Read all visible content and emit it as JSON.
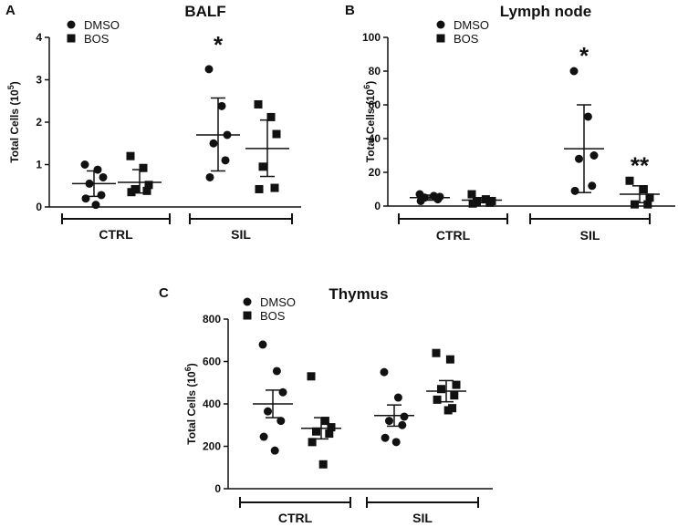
{
  "chart_data": [
    {
      "id": "A",
      "panel_letter": "A",
      "type": "scatter",
      "title": "BALF",
      "ylabel": "Total Cells",
      "ylabel_exp": "5",
      "ylim": [
        0,
        4
      ],
      "yticks": [
        "0",
        "1",
        "2",
        "3",
        "4"
      ],
      "legend": [
        {
          "name": "DMSO",
          "marker": "circle"
        },
        {
          "name": "BOS",
          "marker": "square"
        }
      ],
      "groups": [
        {
          "label": "CTRL"
        },
        {
          "label": "SIL"
        }
      ],
      "series": [
        {
          "name": "DMSO",
          "group": "CTRL",
          "marker": "circle",
          "values": [
            1.0,
            0.88,
            0.7,
            0.55,
            0.28,
            0.2,
            0.05
          ],
          "mean": 0.55,
          "err_low": 0.25,
          "err_high": 0.85,
          "annotation": ""
        },
        {
          "name": "BOS",
          "group": "CTRL",
          "marker": "square",
          "values": [
            1.2,
            0.92,
            0.52,
            0.42,
            0.38,
            0.35
          ],
          "mean": 0.58,
          "err_low": 0.33,
          "err_high": 0.88,
          "annotation": ""
        },
        {
          "name": "DMSO",
          "group": "SIL",
          "marker": "circle",
          "values": [
            3.25,
            2.38,
            1.7,
            1.5,
            1.1,
            0.7
          ],
          "mean": 1.7,
          "err_low": 0.85,
          "err_high": 2.57,
          "annotation": "*"
        },
        {
          "name": "BOS",
          "group": "SIL",
          "marker": "square",
          "values": [
            2.42,
            2.12,
            1.72,
            0.95,
            0.45,
            0.42
          ],
          "mean": 1.38,
          "err_low": 0.72,
          "err_high": 2.05,
          "annotation": ""
        }
      ]
    },
    {
      "id": "B",
      "panel_letter": "B",
      "type": "scatter",
      "title": "Lymph node",
      "ylabel": "Total Cells",
      "ylabel_exp": "6",
      "ylim": [
        0,
        100
      ],
      "yticks": [
        "0",
        "20",
        "40",
        "60",
        "80",
        "100"
      ],
      "legend": [
        {
          "name": "DMSO",
          "marker": "circle"
        },
        {
          "name": "BOS",
          "marker": "square"
        }
      ],
      "groups": [
        {
          "label": "CTRL"
        },
        {
          "label": "SIL"
        }
      ],
      "series": [
        {
          "name": "DMSO",
          "group": "CTRL",
          "marker": "circle",
          "values": [
            7,
            6,
            5.5,
            5,
            4,
            3
          ],
          "mean": 5,
          "err_low": 3.5,
          "err_high": 6.5,
          "annotation": ""
        },
        {
          "name": "BOS",
          "group": "CTRL",
          "marker": "square",
          "values": [
            7,
            4,
            3,
            2.5,
            2,
            1.5
          ],
          "mean": 3.5,
          "err_low": 2,
          "err_high": 5,
          "annotation": ""
        },
        {
          "name": "DMSO",
          "group": "SIL",
          "marker": "circle",
          "values": [
            80,
            53,
            30,
            28,
            12,
            9
          ],
          "mean": 34,
          "err_low": 8,
          "err_high": 60,
          "annotation": "*"
        },
        {
          "name": "BOS",
          "group": "SIL",
          "marker": "square",
          "values": [
            15,
            10,
            5,
            1,
            1
          ],
          "mean": 7,
          "err_low": 2,
          "err_high": 12,
          "annotation": "**"
        }
      ]
    },
    {
      "id": "C",
      "panel_letter": "C",
      "type": "scatter",
      "title": "Thymus",
      "ylabel": "Total Cells",
      "ylabel_exp": "6",
      "ylim": [
        0,
        800
      ],
      "yticks": [
        "0",
        "200",
        "400",
        "600",
        "800"
      ],
      "legend": [
        {
          "name": "DMSO",
          "marker": "circle"
        },
        {
          "name": "BOS",
          "marker": "square"
        }
      ],
      "groups": [
        {
          "label": "CTRL"
        },
        {
          "label": "SIL"
        }
      ],
      "series": [
        {
          "name": "DMSO",
          "group": "CTRL",
          "marker": "circle",
          "values": [
            680,
            555,
            455,
            365,
            320,
            245,
            180
          ],
          "mean": 400,
          "err_low": 335,
          "err_high": 465,
          "annotation": ""
        },
        {
          "name": "BOS",
          "group": "CTRL",
          "marker": "square",
          "values": [
            530,
            320,
            290,
            270,
            260,
            220,
            115
          ],
          "mean": 285,
          "err_low": 235,
          "err_high": 335,
          "annotation": ""
        },
        {
          "name": "DMSO",
          "group": "SIL",
          "marker": "circle",
          "values": [
            550,
            430,
            340,
            320,
            300,
            240,
            220
          ],
          "mean": 345,
          "err_low": 295,
          "err_high": 395,
          "annotation": ""
        },
        {
          "name": "BOS",
          "group": "SIL",
          "marker": "square",
          "values": [
            640,
            610,
            490,
            470,
            440,
            420,
            370,
            380
          ],
          "mean": 460,
          "err_low": 410,
          "err_high": 510,
          "annotation": ""
        }
      ]
    }
  ]
}
